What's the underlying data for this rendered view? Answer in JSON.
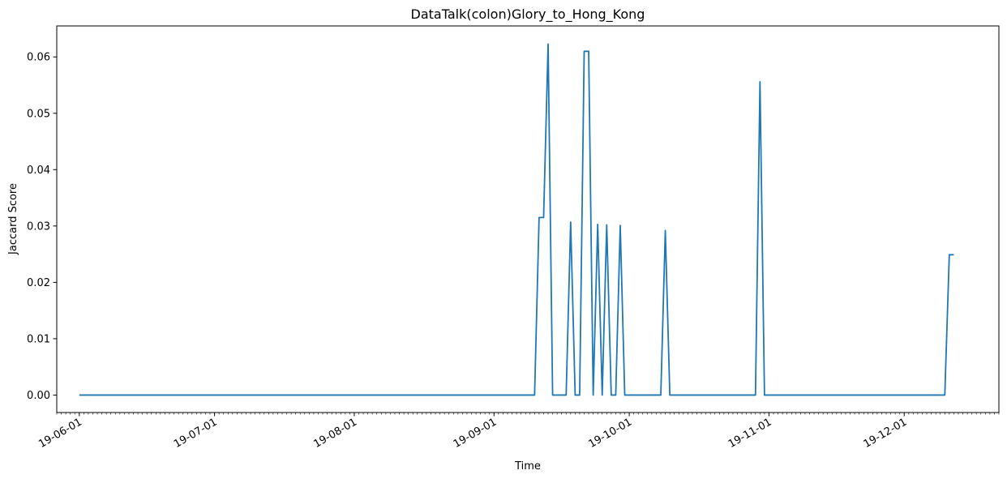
{
  "chart_data": {
    "type": "line",
    "title": "DataTalk(colon)Glory_to_Hong_Kong",
    "xlabel": "Time",
    "ylabel": "Jaccard Score",
    "xlim": [
      "2019-05-27",
      "2019-12-22"
    ],
    "ylim": [
      -0.0031,
      0.0655
    ],
    "yticks": [
      0.0,
      0.01,
      0.02,
      0.03,
      0.04,
      0.05,
      0.06
    ],
    "ytick_labels": [
      "0.00",
      "0.01",
      "0.02",
      "0.03",
      "0.04",
      "0.05",
      "0.06"
    ],
    "xticks": [
      "2019-06-01",
      "2019-07-01",
      "2019-08-01",
      "2019-09-01",
      "2019-10-01",
      "2019-11-01",
      "2019-12-01"
    ],
    "xtick_labels": [
      "19-06-01",
      "19-07-01",
      "19-08-01",
      "19-09-01",
      "19-10-01",
      "19-11-01",
      "19-12-01"
    ],
    "minor_ticks": "daily",
    "grid": false,
    "color": "#1f77b4",
    "series": [
      {
        "x": [
          "2019-06-01",
          "2019-09-10",
          "2019-09-11",
          "2019-09-12",
          "2019-09-13",
          "2019-09-14",
          "2019-09-17",
          "2019-09-18",
          "2019-09-19",
          "2019-09-20",
          "2019-09-21",
          "2019-09-22",
          "2019-09-23",
          "2019-09-24",
          "2019-09-25",
          "2019-09-26",
          "2019-09-27",
          "2019-09-28",
          "2019-09-29",
          "2019-09-30",
          "2019-10-01",
          "2019-10-08",
          "2019-10-09",
          "2019-10-10",
          "2019-10-29",
          "2019-10-30",
          "2019-10-31",
          "2019-12-10",
          "2019-12-11",
          "2019-12-12"
        ],
        "y": [
          0.0,
          0.0,
          0.0315,
          0.0315,
          0.0623,
          0.0,
          0.0,
          0.0307,
          0.0,
          0.0,
          0.061,
          0.061,
          0.0,
          0.0303,
          0.0,
          0.0302,
          0.0,
          0.0,
          0.0301,
          0.0,
          0.0,
          0.0,
          0.0292,
          0.0,
          0.0,
          0.0556,
          0.0,
          0.0,
          0.0249,
          0.0249
        ]
      }
    ]
  }
}
